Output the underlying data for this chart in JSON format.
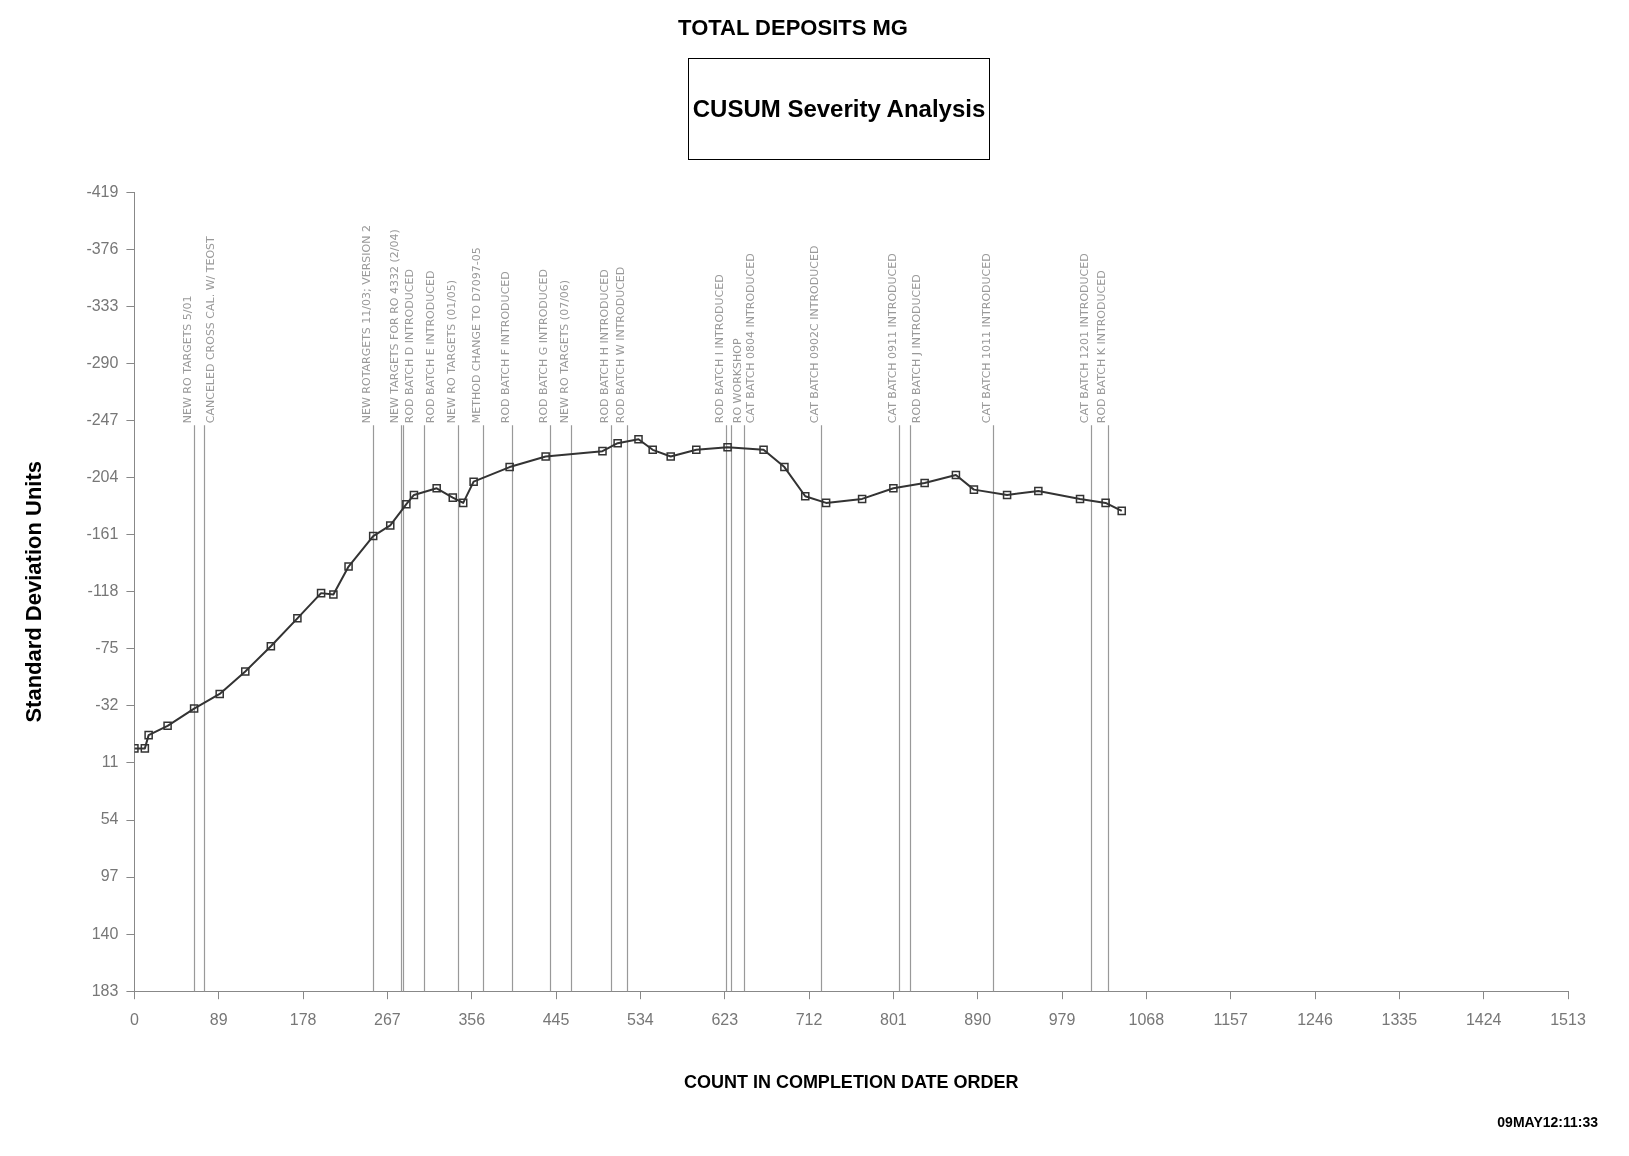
{
  "chart_data": {
    "type": "line",
    "title": "TOTAL DEPOSITS MG",
    "subtitle": "CUSUM Severity Analysis",
    "xlabel": "COUNT IN COMPLETION DATE ORDER",
    "ylabel": "Standard Deviation Units",
    "annotations": [
      "09MAY12:11:33"
    ],
    "x": [
      0,
      11,
      15,
      35,
      63,
      90,
      117,
      144,
      172,
      197,
      210,
      226,
      252,
      270,
      287,
      295,
      319,
      336,
      347,
      358,
      396,
      434,
      494,
      510,
      532,
      547,
      566,
      593,
      626,
      664,
      686,
      708,
      730,
      768,
      801,
      834,
      867,
      886,
      921,
      954,
      998,
      1025,
      1042
    ],
    "series": [
      {
        "color": "#333333",
        "values": [
          0,
          0,
          -10,
          -17,
          -30,
          -41,
          -58,
          -77,
          -98,
          -117,
          -116,
          -137,
          -160,
          -168,
          -184,
          -191,
          -196,
          -189,
          -185,
          -201,
          -212,
          -220,
          -224,
          -230,
          -233,
          -225,
          -220,
          -225,
          -227,
          -225,
          -212,
          -190,
          -185,
          -188,
          -196,
          -200,
          -206,
          -195,
          -191,
          -194,
          -188,
          -185,
          -179
        ]
      }
    ],
    "xlim": [
      0,
      1513
    ],
    "xticks": [
      0,
      89,
      178,
      267,
      356,
      445,
      534,
      623,
      712,
      801,
      890,
      979,
      1068,
      1157,
      1246,
      1335,
      1424,
      1513
    ],
    "ylim": [
      183,
      -419
    ],
    "yticks": [
      -419,
      -376,
      -333,
      -290,
      -247,
      -204,
      -161,
      -118,
      -75,
      -32,
      11,
      54,
      97,
      140,
      183
    ],
    "ref_lines": [
      {
        "axis": "x",
        "value": 63,
        "label": "NEW RO TARGETS 5/01",
        "color": "#999999"
      },
      {
        "axis": "x",
        "value": 73,
        "label": "CANCELED CROSS CAL. W/ TEOST",
        "color": "#999999"
      },
      {
        "axis": "x",
        "value": 252,
        "label": "NEW ROTARGETS 11/03; VERSION 2",
        "color": "#999999"
      },
      {
        "axis": "x",
        "value": 281,
        "label": "NEW TARGETS FOR RO 4332 (2/04)",
        "color": "#999999"
      },
      {
        "axis": "x",
        "value": 283,
        "label": "ROD BATCH D INTRODUCED",
        "color": "#999999"
      },
      {
        "axis": "x",
        "value": 306,
        "label": "ROD BATCH E INTRODUCED",
        "color": "#999999"
      },
      {
        "axis": "x",
        "value": 341,
        "label": "NEW RO TARGETS (01/05)",
        "color": "#999999"
      },
      {
        "axis": "x",
        "value": 368,
        "label": "METHOD CHANGE TO D7097-05",
        "color": "#999999"
      },
      {
        "axis": "x",
        "value": 399,
        "label": "ROD BATCH F INTRODUCED",
        "color": "#999999"
      },
      {
        "axis": "x",
        "value": 439,
        "label": "ROD BATCH G INTRODUCED",
        "color": "#999999"
      },
      {
        "axis": "x",
        "value": 461,
        "label": "NEW RO TARGETS (07/06)",
        "color": "#999999"
      },
      {
        "axis": "x",
        "value": 503,
        "label": "ROD BATCH H INTRODUCED",
        "color": "#999999"
      },
      {
        "axis": "x",
        "value": 520,
        "label": "ROD BATCH W INTRODUCED",
        "color": "#999999"
      },
      {
        "axis": "x",
        "value": 624,
        "label": "ROD BATCH I INTRODUCED",
        "color": "#999999"
      },
      {
        "axis": "x",
        "value": 630,
        "label": "RO WORKSHOP",
        "color": "#999999"
      },
      {
        "axis": "x",
        "value": 643,
        "label": "CAT BATCH 0804 INTRODUCED",
        "color": "#999999"
      },
      {
        "axis": "x",
        "value": 725,
        "label": "CAT BATCH 0902C INTRODUCED",
        "color": "#999999"
      },
      {
        "axis": "x",
        "value": 807,
        "label": "CAT BATCH 0911 INTRODUCED",
        "color": "#999999"
      },
      {
        "axis": "x",
        "value": 819,
        "label": "ROD BATCH J INTRODUCED",
        "color": "#999999"
      },
      {
        "axis": "x",
        "value": 906,
        "label": "CAT BATCH 1011 INTRODUCED",
        "color": "#999999"
      },
      {
        "axis": "x",
        "value": 1010,
        "label": "CAT BATCH 1201 INTRODUCED",
        "color": "#999999"
      },
      {
        "axis": "x",
        "value": 1027,
        "label": "ROD BATCH K INTRODUCED",
        "color": "#999999"
      }
    ],
    "grid": false,
    "legend": false,
    "marker": "square",
    "line_style": "solid"
  }
}
